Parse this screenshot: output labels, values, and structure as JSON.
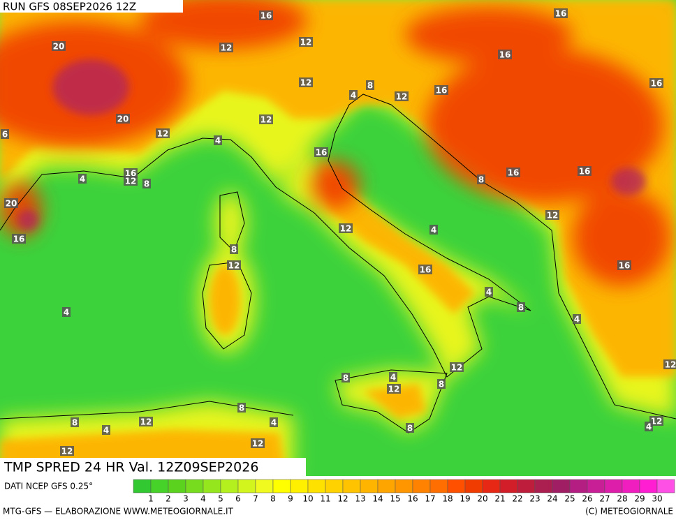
{
  "header": {
    "run": "RUN GFS 08SEP2026 12Z"
  },
  "map": {
    "title": "TMP SPRED 24 HR Val. 12Z09SEP2026",
    "contour_labels": [
      16,
      16,
      20,
      12,
      12,
      16,
      12,
      4,
      8,
      12,
      16,
      16,
      6,
      20,
      12,
      12,
      4,
      16,
      16,
      12,
      8,
      4,
      16,
      16,
      8,
      20,
      12,
      16,
      12,
      4,
      8,
      12,
      16,
      16,
      4,
      8,
      4,
      4,
      12,
      12,
      4,
      8,
      12,
      8,
      8,
      8,
      4,
      12,
      4,
      12,
      4,
      8,
      12,
      12
    ]
  },
  "legend": {
    "source": "DATI NCEP GFS 0.25°",
    "values": [
      1,
      2,
      3,
      4,
      5,
      6,
      7,
      8,
      9,
      10,
      11,
      12,
      13,
      14,
      15,
      16,
      17,
      18,
      19,
      20,
      21,
      22,
      23,
      24,
      25,
      26,
      27,
      28,
      29,
      30
    ],
    "colors": [
      "#32c832",
      "#46d228",
      "#5ad21e",
      "#78dc1e",
      "#96e61e",
      "#b4f01e",
      "#d2f51e",
      "#f0fa1e",
      "#ffff00",
      "#fff000",
      "#ffe100",
      "#ffd200",
      "#ffc300",
      "#ffb400",
      "#ffa500",
      "#ff9600",
      "#ff8200",
      "#ff6e00",
      "#ff5000",
      "#f03c00",
      "#e62814",
      "#d21e28",
      "#be1e3c",
      "#aa1e50",
      "#a01e64",
      "#b41e82",
      "#c81e96",
      "#dc1eaa",
      "#f01ebe",
      "#ff1ed2",
      "#ff50e6"
    ]
  },
  "footer": {
    "left": "MTG-GFS — ELABORAZIONE WWW.METEOGIORNALE.IT",
    "right": "(C) METEOGIORNALE"
  }
}
